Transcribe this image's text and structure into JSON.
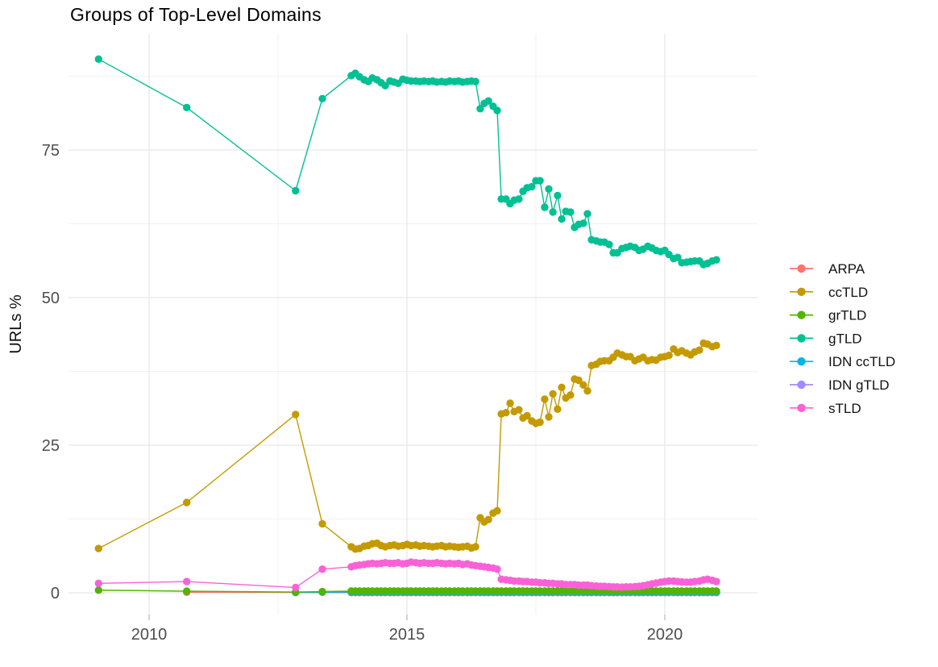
{
  "page": {
    "title": "Groups of Top-Level Domains"
  },
  "axes": {
    "y_label": "URLs %",
    "x_tick_labels": [
      "2010",
      "2015",
      "2020"
    ],
    "y_tick_labels": [
      "0",
      "25",
      "50",
      "75"
    ]
  },
  "legend": {
    "items": [
      "ARPA",
      "ccTLD",
      "grTLD",
      "gTLD",
      "IDN ccTLD",
      "IDN gTLD",
      "sTLD"
    ]
  },
  "colors": {
    "arpa": "#F8766D",
    "cctld": "#C49A00",
    "grtld": "#53B400",
    "gtld": "#00C094",
    "idn_cctld": "#00B6EB",
    "idn_gtld": "#A58AFF",
    "stld": "#FB61D7",
    "grid_major": "#E6E6E6",
    "grid_minor": "#F1F1F1",
    "tick": "#C2C2C2",
    "axis_text": "#4d4d4d"
  },
  "chart_data": {
    "type": "line",
    "title": "Groups of Top-Level Domains",
    "xlabel": "",
    "ylabel": "URLs %",
    "x_major_ticks": [
      2010,
      2015,
      2020
    ],
    "x_minor_gridlines": [
      2012.5,
      2017.5
    ],
    "y_major_ticks": [
      0,
      25,
      50,
      75
    ],
    "y_minor_gridlines": [
      12.5,
      37.5,
      62.5,
      87.5
    ],
    "xlim": [
      2008.4,
      2021.75
    ],
    "ylim": [
      -3.7,
      94.7
    ],
    "grid": true,
    "legend_position": "right",
    "x_dense": [
      2013.92,
      2014.0,
      2014.08,
      2014.17,
      2014.25,
      2014.33,
      2014.42,
      2014.5,
      2014.58,
      2014.67,
      2014.75,
      2014.83,
      2014.92,
      2015.0,
      2015.08,
      2015.17,
      2015.25,
      2015.33,
      2015.42,
      2015.5,
      2015.58,
      2015.67,
      2015.75,
      2015.83,
      2015.92,
      2016.0,
      2016.08,
      2016.17,
      2016.25,
      2016.33,
      2016.42,
      2016.5,
      2016.58,
      2016.67,
      2016.75,
      2016.83,
      2016.92,
      2017.0,
      2017.08,
      2017.17,
      2017.25,
      2017.33,
      2017.42,
      2017.5,
      2017.58,
      2017.67,
      2017.75,
      2017.83,
      2017.92,
      2018.0,
      2018.08,
      2018.17,
      2018.25,
      2018.33,
      2018.42,
      2018.5,
      2018.58,
      2018.67,
      2018.75,
      2018.83,
      2018.92,
      2019.0,
      2019.08,
      2019.17,
      2019.25,
      2019.33,
      2019.42,
      2019.5,
      2019.58,
      2019.67,
      2019.75,
      2019.83,
      2019.92,
      2020.0,
      2020.08,
      2020.17,
      2020.25,
      2020.33,
      2020.42,
      2020.5,
      2020.58,
      2020.67,
      2020.75,
      2020.83,
      2020.92,
      2021.0
    ],
    "series": [
      {
        "name": "ARPA",
        "color": "#F8766D",
        "early": [
          [
            2010.73,
            0.1
          ],
          [
            2012.84,
            0.05
          ]
        ],
        "dense_y": 0.03
      },
      {
        "name": "ccTLD",
        "color": "#C49A00",
        "early": [
          [
            2009.02,
            7.5
          ],
          [
            2010.73,
            15.3
          ],
          [
            2012.84,
            30.2
          ],
          [
            2013.36,
            11.7
          ]
        ],
        "dense_y": [
          7.8,
          7.4,
          7.5,
          7.9,
          8.0,
          8.3,
          8.4,
          8.0,
          7.8,
          8.0,
          8.1,
          7.9,
          8.0,
          8.2,
          8.0,
          8.1,
          7.9,
          8.0,
          7.9,
          7.8,
          7.9,
          8.0,
          7.8,
          7.9,
          7.8,
          7.7,
          7.8,
          7.9,
          7.6,
          7.8,
          12.7,
          12.0,
          12.4,
          13.5,
          13.9,
          30.3,
          30.5,
          32.1,
          30.7,
          31.0,
          29.6,
          30.0,
          29.1,
          28.7,
          28.9,
          32.8,
          29.8,
          33.7,
          31.1,
          34.8,
          33.0,
          33.5,
          36.2,
          36.0,
          35.2,
          34.2,
          38.5,
          38.7,
          39.2,
          39.3,
          39.3,
          39.9,
          40.6,
          40.3,
          40.0,
          40.0,
          39.3,
          39.6,
          39.9,
          39.3,
          39.5,
          39.4,
          39.9,
          40.0,
          40.2,
          41.3,
          40.7,
          41.0,
          40.6,
          40.3,
          40.8,
          41.1,
          42.3,
          42.1,
          41.7,
          41.9
        ]
      },
      {
        "name": "grTLD",
        "color": "#53B400",
        "early": [
          [
            2009.02,
            0.45
          ],
          [
            2010.73,
            0.27
          ],
          [
            2012.84,
            0.12
          ],
          [
            2013.36,
            0.2
          ]
        ],
        "dense_y": 0.3
      },
      {
        "name": "gTLD",
        "color": "#00C094",
        "early": [
          [
            2009.02,
            90.4
          ],
          [
            2010.73,
            82.2
          ],
          [
            2012.84,
            68.1
          ],
          [
            2013.36,
            83.7
          ]
        ],
        "dense_y": [
          87.6,
          88.0,
          87.4,
          86.9,
          86.6,
          87.2,
          86.9,
          86.4,
          85.9,
          86.7,
          86.5,
          86.3,
          87.0,
          86.8,
          86.7,
          86.7,
          86.6,
          86.7,
          86.6,
          86.7,
          86.5,
          86.6,
          86.5,
          86.7,
          86.6,
          86.7,
          86.5,
          86.6,
          86.7,
          86.6,
          82.0,
          82.9,
          83.3,
          82.4,
          81.7,
          66.7,
          66.7,
          65.9,
          66.5,
          66.7,
          68.0,
          68.6,
          68.8,
          69.8,
          69.8,
          65.3,
          68.4,
          64.5,
          67.3,
          63.3,
          64.6,
          64.5,
          61.9,
          62.4,
          62.6,
          64.2,
          59.8,
          59.6,
          59.4,
          59.4,
          59.0,
          57.6,
          57.6,
          58.3,
          58.5,
          58.7,
          58.5,
          58.0,
          58.2,
          58.7,
          58.4,
          58.0,
          57.8,
          58.0,
          57.3,
          56.6,
          56.8,
          55.9,
          56.0,
          56.1,
          56.2,
          56.2,
          55.6,
          55.8,
          56.2,
          56.4
        ]
      },
      {
        "name": "IDN ccTLD",
        "color": "#00B6EB",
        "early": [
          [
            2012.84,
            0.06
          ],
          [
            2013.36,
            0.1
          ]
        ],
        "dense_y": 0.12
      },
      {
        "name": "IDN gTLD",
        "color": "#A58AFF",
        "early": [],
        "dense_y": 0.06,
        "dense_start_index": 29
      },
      {
        "name": "sTLD",
        "color": "#FB61D7",
        "early": [
          [
            2009.02,
            1.6
          ],
          [
            2010.73,
            1.9
          ],
          [
            2012.84,
            0.9
          ],
          [
            2013.36,
            4.0
          ]
        ],
        "dense_y": [
          4.4,
          4.6,
          4.7,
          4.8,
          4.9,
          5.0,
          4.9,
          5.0,
          5.1,
          5.0,
          5.0,
          5.1,
          4.9,
          5.0,
          5.2,
          5.1,
          5.0,
          5.1,
          5.0,
          5.0,
          5.1,
          5.0,
          4.9,
          5.0,
          4.9,
          5.0,
          4.8,
          4.9,
          4.7,
          4.6,
          4.5,
          4.4,
          4.3,
          4.2,
          4.0,
          2.3,
          2.2,
          2.1,
          2.0,
          2.0,
          1.9,
          1.9,
          1.8,
          1.8,
          1.7,
          1.7,
          1.6,
          1.6,
          1.5,
          1.5,
          1.4,
          1.4,
          1.4,
          1.3,
          1.3,
          1.3,
          1.2,
          1.15,
          1.1,
          1.1,
          1.05,
          1.0,
          1.0,
          0.95,
          1.0,
          1.0,
          1.05,
          1.1,
          1.2,
          1.35,
          1.5,
          1.65,
          1.8,
          1.9,
          2.0,
          2.0,
          1.9,
          1.85,
          1.8,
          1.8,
          1.9,
          2.0,
          2.2,
          2.3,
          2.1,
          1.9
        ]
      }
    ]
  }
}
